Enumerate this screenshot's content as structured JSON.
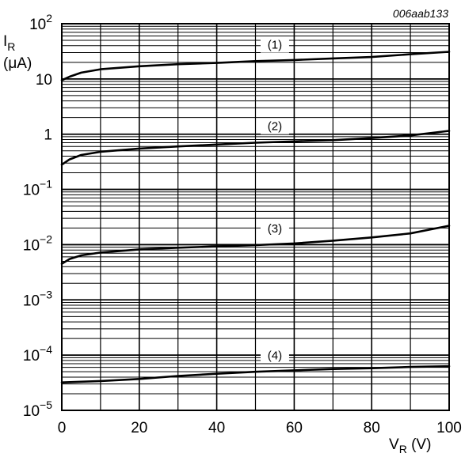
{
  "chart_data": {
    "type": "line",
    "reference": "006aab133",
    "xlabel": "V",
    "xlabel_sub": "R",
    "xlabel_unit": " (V)",
    "ylabel": "I",
    "ylabel_sub": "R",
    "ylabel_unit": "(μA)",
    "xlim": [
      0,
      100
    ],
    "ylim": [
      1e-05,
      100
    ],
    "yscale": "log",
    "grid": true,
    "x_ticks": [
      {
        "value": 0,
        "label": "0"
      },
      {
        "value": 20,
        "label": "20"
      },
      {
        "value": 40,
        "label": "40"
      },
      {
        "value": 60,
        "label": "60"
      },
      {
        "value": 80,
        "label": "80"
      },
      {
        "value": 100,
        "label": "100"
      }
    ],
    "y_ticks": [
      {
        "value": 100,
        "base": "10",
        "exp": "2"
      },
      {
        "value": 10,
        "base": "10",
        "exp": ""
      },
      {
        "value": 1,
        "base": "1",
        "exp": ""
      },
      {
        "value": 0.1,
        "base": "10",
        "exp": "−1"
      },
      {
        "value": 0.01,
        "base": "10",
        "exp": "−2"
      },
      {
        "value": 0.001,
        "base": "10",
        "exp": "−3"
      },
      {
        "value": 0.0001,
        "base": "10",
        "exp": "−4"
      },
      {
        "value": 1e-05,
        "base": "10",
        "exp": "−5"
      }
    ],
    "series": [
      {
        "name": "(1)",
        "x": [
          0,
          2,
          5,
          10,
          20,
          30,
          40,
          50,
          60,
          70,
          80,
          90,
          100
        ],
        "y": [
          9.5,
          11,
          13,
          15,
          17,
          18.5,
          19.5,
          21,
          22,
          23.5,
          25,
          28,
          31
        ]
      },
      {
        "name": "(2)",
        "x": [
          0,
          2,
          5,
          10,
          20,
          30,
          40,
          50,
          60,
          70,
          80,
          90,
          100
        ],
        "y": [
          0.28,
          0.35,
          0.42,
          0.48,
          0.55,
          0.6,
          0.65,
          0.7,
          0.74,
          0.78,
          0.85,
          0.95,
          1.15
        ]
      },
      {
        "name": "(3)",
        "x": [
          0,
          2,
          5,
          10,
          20,
          30,
          40,
          50,
          60,
          70,
          80,
          90,
          100
        ],
        "y": [
          0.0045,
          0.0055,
          0.0064,
          0.0072,
          0.0082,
          0.0088,
          0.0093,
          0.0098,
          0.0105,
          0.0118,
          0.0135,
          0.016,
          0.022
        ]
      },
      {
        "name": "(4)",
        "x": [
          0,
          10,
          20,
          30,
          40,
          50,
          60,
          70,
          80,
          90,
          100
        ],
        "y": [
          3.2e-05,
          3.4e-05,
          3.7e-05,
          4.2e-05,
          4.6e-05,
          5e-05,
          5.3e-05,
          5.6e-05,
          5.8e-05,
          6.1e-05,
          6.3e-05
        ]
      }
    ]
  }
}
